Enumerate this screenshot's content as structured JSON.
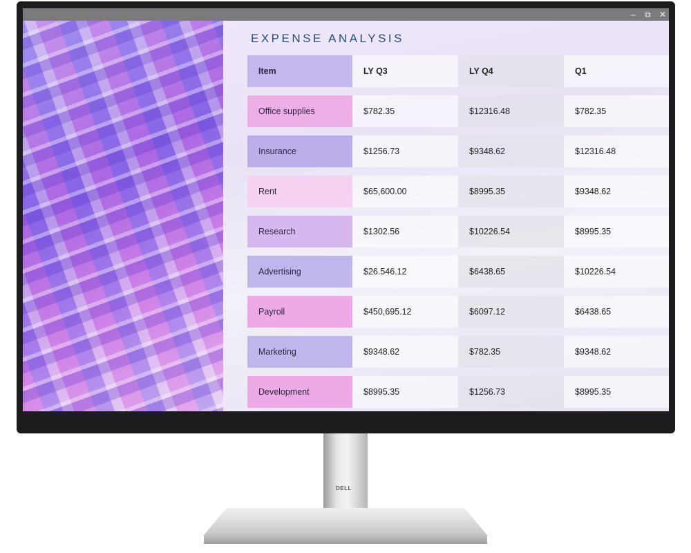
{
  "window": {
    "controls": [
      "–",
      "⧉",
      "✕"
    ]
  },
  "title": "EXPENSE ANALYSIS",
  "table": {
    "headers": [
      "Item",
      "LY Q3",
      "LY Q4",
      "Q1"
    ],
    "rows": [
      {
        "item": "Office supplies",
        "ly_q3": "$782.35",
        "ly_q4": "$12316.48",
        "q1": "$782.35",
        "color": "#eeaee6"
      },
      {
        "item": "Insurance",
        "ly_q3": "$1256.73",
        "ly_q4": "$9348.62",
        "q1": "$12316.48",
        "color": "#bcaeea"
      },
      {
        "item": "Rent",
        "ly_q3": "$65,600.00",
        "ly_q4": "$8995.35",
        "q1": "$9348.62",
        "color": "#f5d2f1"
      },
      {
        "item": "Research",
        "ly_q3": "$1302.56",
        "ly_q4": "$10226.54",
        "q1": " $8995.35",
        "color": "#d6b8ee"
      },
      {
        "item": "Advertising",
        "ly_q3": "$26.546.12",
        "ly_q4": "$6438.65",
        "q1": "$10226.54",
        "color": "#c0b6ec"
      },
      {
        "item": "Payroll",
        "ly_q3": "$450,695.12",
        "ly_q4": "$6097.12",
        "q1": " $6438.65",
        "color": "#eeaae6"
      },
      {
        "item": "Marketing",
        "ly_q3": "$9348.62",
        "ly_q4": "$782.35",
        "q1": "$9348.62",
        "color": "#c0b6ec"
      },
      {
        "item": "Development",
        "ly_q3": " $8995.35",
        "ly_q4": "$1256.73",
        "q1": "$8995.35",
        "color": "#eeaae6"
      }
    ]
  },
  "brand": "DELL"
}
